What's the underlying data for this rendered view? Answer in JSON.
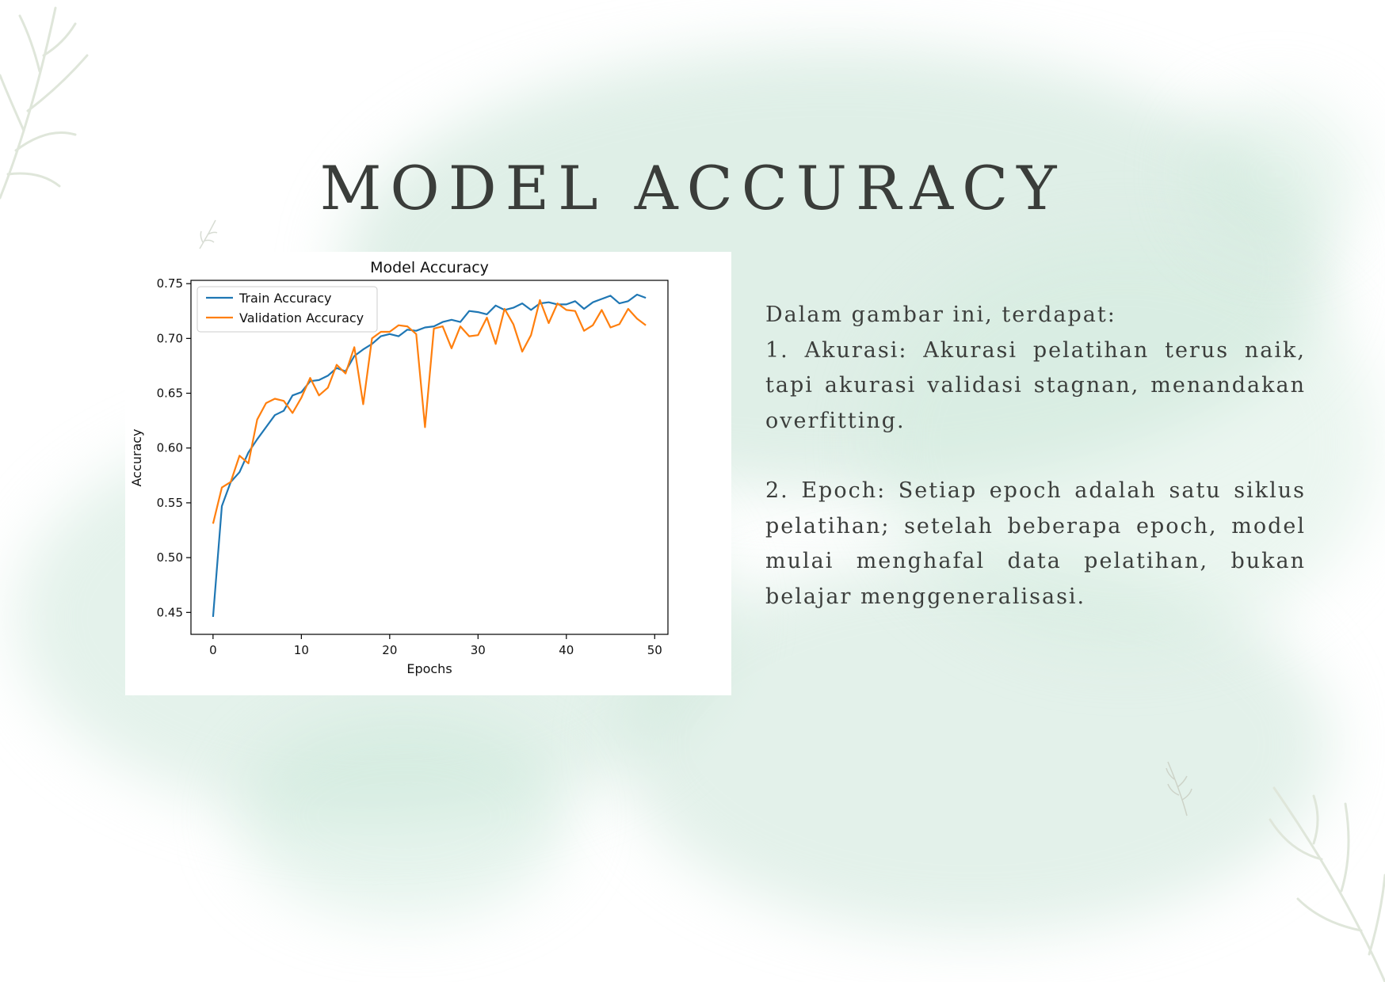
{
  "page": {
    "title": "MODEL ACCURACY",
    "intro": "Dalam gambar ini, terdapat:",
    "point1": "1. Akurasi: Akurasi pelatihan terus naik, tapi akurasi validasi stagnan, menandakan overfitting.",
    "point2": "2. Epoch: Setiap epoch adalah satu siklus pelatihan; setelah beberapa epoch, model mulai menghafal data pelatihan, bukan belajar menggeneralisasi."
  },
  "colors": {
    "title": "#3a3d3a",
    "body_text": "#3c3e3c",
    "watercolor": "#c4e2d4",
    "train": "#1f77b4",
    "validation": "#ff7f0e"
  },
  "decorations": [
    "leaf-sprig-icon",
    "small-leaf-icon"
  ],
  "chart_data": {
    "type": "line",
    "title": "Model Accuracy",
    "xlabel": "Epochs",
    "ylabel": "Accuracy",
    "xlim": [
      -2.5,
      51.5
    ],
    "ylim": [
      0.43,
      0.753
    ],
    "xticks": [
      0,
      10,
      20,
      30,
      40,
      50
    ],
    "yticks": [
      0.45,
      0.5,
      0.55,
      0.6,
      0.65,
      0.7,
      0.75
    ],
    "ytick_labels": [
      "0.45",
      "0.50",
      "0.55",
      "0.60",
      "0.65",
      "0.70",
      "0.75"
    ],
    "grid": false,
    "legend_position": "upper-left",
    "x": [
      0,
      1,
      2,
      3,
      4,
      5,
      6,
      7,
      8,
      9,
      10,
      11,
      12,
      13,
      14,
      15,
      16,
      17,
      18,
      19,
      20,
      21,
      22,
      23,
      24,
      25,
      26,
      27,
      28,
      29,
      30,
      31,
      32,
      33,
      34,
      35,
      36,
      37,
      38,
      39,
      40,
      41,
      42,
      43,
      44,
      45,
      46,
      47,
      48,
      49
    ],
    "series": [
      {
        "name": "Train Accuracy",
        "color": "#1f77b4",
        "values": [
          0.446,
          0.547,
          0.569,
          0.578,
          0.596,
          0.608,
          0.619,
          0.63,
          0.634,
          0.648,
          0.651,
          0.661,
          0.662,
          0.666,
          0.673,
          0.67,
          0.684,
          0.69,
          0.695,
          0.702,
          0.704,
          0.702,
          0.708,
          0.707,
          0.71,
          0.711,
          0.715,
          0.717,
          0.715,
          0.725,
          0.724,
          0.722,
          0.73,
          0.726,
          0.728,
          0.732,
          0.726,
          0.732,
          0.733,
          0.731,
          0.731,
          0.734,
          0.727,
          0.733,
          0.736,
          0.739,
          0.732,
          0.734,
          0.74,
          0.737
        ]
      },
      {
        "name": "Validation Accuracy",
        "color": "#ff7f0e",
        "values": [
          0.531,
          0.564,
          0.569,
          0.593,
          0.586,
          0.626,
          0.641,
          0.645,
          0.643,
          0.632,
          0.646,
          0.664,
          0.648,
          0.655,
          0.676,
          0.668,
          0.692,
          0.64,
          0.7,
          0.706,
          0.706,
          0.712,
          0.711,
          0.704,
          0.619,
          0.709,
          0.711,
          0.691,
          0.711,
          0.702,
          0.703,
          0.719,
          0.695,
          0.727,
          0.713,
          0.688,
          0.703,
          0.735,
          0.714,
          0.732,
          0.726,
          0.725,
          0.707,
          0.712,
          0.726,
          0.71,
          0.713,
          0.727,
          0.718,
          0.712
        ]
      }
    ]
  }
}
